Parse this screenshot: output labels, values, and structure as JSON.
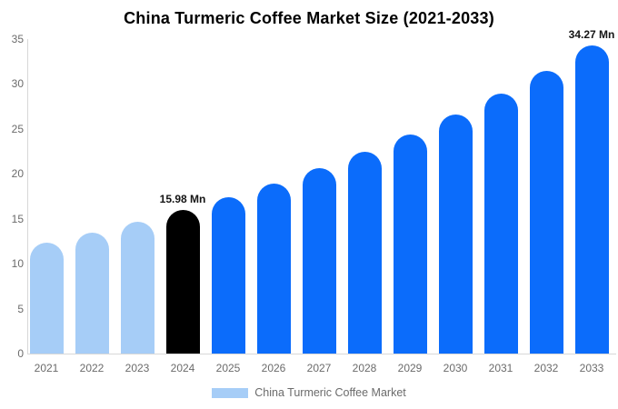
{
  "chart_data": {
    "type": "bar",
    "title": "China Turmeric Coffee Market Size (2021-2033)",
    "unit": "Mn",
    "categories": [
      "2021",
      "2022",
      "2023",
      "2024",
      "2025",
      "2026",
      "2027",
      "2028",
      "2029",
      "2030",
      "2031",
      "2032",
      "2033"
    ],
    "values": [
      12.39,
      13.49,
      14.68,
      15.98,
      17.39,
      18.93,
      20.61,
      22.43,
      24.42,
      26.58,
      28.93,
      31.49,
      34.27
    ],
    "bar_colors": [
      "#a6cdf7",
      "#a6cdf7",
      "#a6cdf7",
      "#000000",
      "#0b6cfb",
      "#0b6cfb",
      "#0b6cfb",
      "#0b6cfb",
      "#0b6cfb",
      "#0b6cfb",
      "#0b6cfb",
      "#0b6cfb",
      "#0b6cfb"
    ],
    "annotations": [
      {
        "category": "2024",
        "text": "15.98 Mn"
      },
      {
        "category": "2033",
        "text": "34.27 Mn"
      }
    ],
    "ylim": [
      0,
      35
    ],
    "yticks": [
      "0",
      "5",
      "10",
      "15",
      "20",
      "25",
      "30",
      "35"
    ],
    "grid": false,
    "legend": {
      "label": "China Turmeric Coffee Market",
      "swatch_color": "#a6cdf7",
      "position": "bottom"
    },
    "colors": {
      "historical_bar": "#a6cdf7",
      "highlight_bar": "#000000",
      "forecast_bar": "#0b6cfb",
      "axis_line": "#d8d8d8",
      "tick_text": "#6b6b6b",
      "annotation_text": "#141414",
      "title_text": "#000000"
    }
  }
}
